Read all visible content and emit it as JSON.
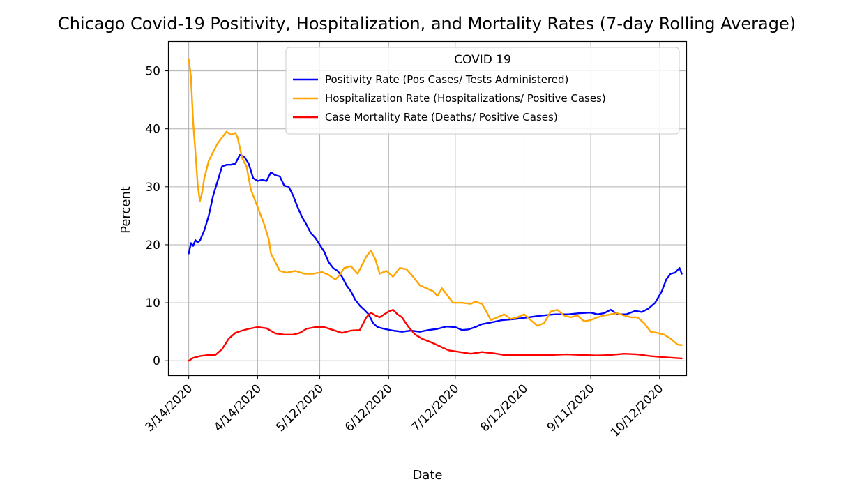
{
  "chart_data": {
    "type": "line",
    "title": "Chicago Covid-19 Positivity, Hospitalization, and Mortality Rates (7-day Rolling Average)",
    "xlabel": "Date",
    "ylabel": "Percent",
    "ylim": [
      -2.5,
      55
    ],
    "xlim": [
      "2020-03-05",
      "2020-10-24"
    ],
    "y_ticks": [
      0,
      10,
      20,
      30,
      40,
      50
    ],
    "x_ticks": [
      {
        "date": "2020-03-14",
        "label": "3/14/2020"
      },
      {
        "date": "2020-04-14",
        "label": "4/14/2020"
      },
      {
        "date": "2020-05-12",
        "label": "5/12/2020"
      },
      {
        "date": "2020-06-12",
        "label": "6/12/2020"
      },
      {
        "date": "2020-07-12",
        "label": "7/12/2020"
      },
      {
        "date": "2020-08-12",
        "label": "8/12/2020"
      },
      {
        "date": "2020-09-11",
        "label": "9/11/2020"
      },
      {
        "date": "2020-10-12",
        "label": "10/12/2020"
      }
    ],
    "grid": true,
    "legend": {
      "title": "COVID 19",
      "placement": "top-right"
    },
    "series": [
      {
        "name": "Positivity Rate (Pos Cases/ Tests Administered)",
        "color": "#0000ff",
        "points": [
          [
            "2020-03-14",
            18.5
          ],
          [
            "2020-03-15",
            20.3
          ],
          [
            "2020-03-16",
            19.8
          ],
          [
            "2020-03-17",
            20.8
          ],
          [
            "2020-03-18",
            20.4
          ],
          [
            "2020-03-19",
            20.7
          ],
          [
            "2020-03-21",
            22.5
          ],
          [
            "2020-03-23",
            25.0
          ],
          [
            "2020-03-25",
            28.5
          ],
          [
            "2020-03-27",
            31.0
          ],
          [
            "2020-03-29",
            33.5
          ],
          [
            "2020-03-31",
            33.8
          ],
          [
            "2020-04-02",
            33.8
          ],
          [
            "2020-04-04",
            34.0
          ],
          [
            "2020-04-06",
            35.5
          ],
          [
            "2020-04-08",
            35.2
          ],
          [
            "2020-04-10",
            34.0
          ],
          [
            "2020-04-12",
            31.5
          ],
          [
            "2020-04-14",
            31.0
          ],
          [
            "2020-04-16",
            31.2
          ],
          [
            "2020-04-18",
            31.0
          ],
          [
            "2020-04-20",
            32.5
          ],
          [
            "2020-04-22",
            32.0
          ],
          [
            "2020-04-24",
            31.8
          ],
          [
            "2020-04-26",
            30.2
          ],
          [
            "2020-04-28",
            30.0
          ],
          [
            "2020-04-30",
            28.5
          ],
          [
            "2020-05-02",
            26.5
          ],
          [
            "2020-05-04",
            24.8
          ],
          [
            "2020-05-06",
            23.5
          ],
          [
            "2020-05-08",
            22.0
          ],
          [
            "2020-05-10",
            21.2
          ],
          [
            "2020-05-12",
            20.0
          ],
          [
            "2020-05-14",
            18.8
          ],
          [
            "2020-05-16",
            17.0
          ],
          [
            "2020-05-18",
            16.0
          ],
          [
            "2020-05-20",
            15.5
          ],
          [
            "2020-05-22",
            14.5
          ],
          [
            "2020-05-24",
            13.0
          ],
          [
            "2020-05-26",
            12.0
          ],
          [
            "2020-05-28",
            10.5
          ],
          [
            "2020-05-30",
            9.5
          ],
          [
            "2020-06-01",
            8.8
          ],
          [
            "2020-06-03",
            8.0
          ],
          [
            "2020-06-05",
            6.5
          ],
          [
            "2020-06-07",
            5.8
          ],
          [
            "2020-06-10",
            5.5
          ],
          [
            "2020-06-14",
            5.2
          ],
          [
            "2020-06-18",
            5.0
          ],
          [
            "2020-06-22",
            5.2
          ],
          [
            "2020-06-26",
            5.0
          ],
          [
            "2020-06-30",
            5.3
          ],
          [
            "2020-07-04",
            5.5
          ],
          [
            "2020-07-08",
            5.9
          ],
          [
            "2020-07-12",
            5.8
          ],
          [
            "2020-07-15",
            5.3
          ],
          [
            "2020-07-18",
            5.4
          ],
          [
            "2020-07-21",
            5.8
          ],
          [
            "2020-07-24",
            6.3
          ],
          [
            "2020-07-28",
            6.6
          ],
          [
            "2020-08-02",
            7.0
          ],
          [
            "2020-08-08",
            7.2
          ],
          [
            "2020-08-14",
            7.5
          ],
          [
            "2020-08-20",
            7.8
          ],
          [
            "2020-08-26",
            8.0
          ],
          [
            "2020-09-01",
            8.0
          ],
          [
            "2020-09-06",
            8.2
          ],
          [
            "2020-09-11",
            8.3
          ],
          [
            "2020-09-14",
            8.0
          ],
          [
            "2020-09-17",
            8.2
          ],
          [
            "2020-09-20",
            8.8
          ],
          [
            "2020-09-23",
            8.0
          ],
          [
            "2020-09-27",
            8.0
          ],
          [
            "2020-10-01",
            8.6
          ],
          [
            "2020-10-04",
            8.4
          ],
          [
            "2020-10-07",
            9.0
          ],
          [
            "2020-10-10",
            10.0
          ],
          [
            "2020-10-13",
            12.0
          ],
          [
            "2020-10-15",
            14.0
          ],
          [
            "2020-10-17",
            15.0
          ],
          [
            "2020-10-19",
            15.2
          ],
          [
            "2020-10-21",
            16.0
          ],
          [
            "2020-10-22",
            15.0
          ]
        ]
      },
      {
        "name": "Hospitalization Rate (Hospitalizations/ Positive Cases)",
        "color": "#ffa500",
        "points": [
          [
            "2020-03-14",
            52.0
          ],
          [
            "2020-03-15",
            49.0
          ],
          [
            "2020-03-16",
            41.0
          ],
          [
            "2020-03-17",
            36.0
          ],
          [
            "2020-03-18",
            30.5
          ],
          [
            "2020-03-19",
            27.5
          ],
          [
            "2020-03-20",
            29.0
          ],
          [
            "2020-03-21",
            31.5
          ],
          [
            "2020-03-23",
            34.5
          ],
          [
            "2020-03-25",
            36.0
          ],
          [
            "2020-03-27",
            37.5
          ],
          [
            "2020-03-29",
            38.5
          ],
          [
            "2020-03-31",
            39.5
          ],
          [
            "2020-04-02",
            39.0
          ],
          [
            "2020-04-04",
            39.3
          ],
          [
            "2020-04-05",
            38.5
          ],
          [
            "2020-04-07",
            35.0
          ],
          [
            "2020-04-09",
            33.5
          ],
          [
            "2020-04-11",
            29.5
          ],
          [
            "2020-04-13",
            27.5
          ],
          [
            "2020-04-15",
            25.5
          ],
          [
            "2020-04-17",
            23.5
          ],
          [
            "2020-04-19",
            21.0
          ],
          [
            "2020-04-20",
            18.5
          ],
          [
            "2020-04-22",
            17.0
          ],
          [
            "2020-04-24",
            15.5
          ],
          [
            "2020-04-27",
            15.2
          ],
          [
            "2020-05-01",
            15.5
          ],
          [
            "2020-05-05",
            15.0
          ],
          [
            "2020-05-09",
            15.0
          ],
          [
            "2020-05-13",
            15.3
          ],
          [
            "2020-05-16",
            14.8
          ],
          [
            "2020-05-19",
            14.0
          ],
          [
            "2020-05-21",
            14.8
          ],
          [
            "2020-05-23",
            16.0
          ],
          [
            "2020-05-26",
            16.3
          ],
          [
            "2020-05-29",
            15.0
          ],
          [
            "2020-05-31",
            16.5
          ],
          [
            "2020-06-02",
            18.0
          ],
          [
            "2020-06-04",
            19.0
          ],
          [
            "2020-06-06",
            17.5
          ],
          [
            "2020-06-08",
            15.0
          ],
          [
            "2020-06-11",
            15.5
          ],
          [
            "2020-06-14",
            14.5
          ],
          [
            "2020-06-17",
            16.0
          ],
          [
            "2020-06-20",
            15.8
          ],
          [
            "2020-06-23",
            14.5
          ],
          [
            "2020-06-26",
            13.0
          ],
          [
            "2020-06-29",
            12.5
          ],
          [
            "2020-07-02",
            12.0
          ],
          [
            "2020-07-04",
            11.2
          ],
          [
            "2020-07-06",
            12.5
          ],
          [
            "2020-07-08",
            11.5
          ],
          [
            "2020-07-11",
            10.0
          ],
          [
            "2020-07-15",
            10.0
          ],
          [
            "2020-07-19",
            9.8
          ],
          [
            "2020-07-21",
            10.2
          ],
          [
            "2020-07-24",
            9.8
          ],
          [
            "2020-07-26",
            8.5
          ],
          [
            "2020-07-28",
            7.0
          ],
          [
            "2020-07-31",
            7.5
          ],
          [
            "2020-08-03",
            8.0
          ],
          [
            "2020-08-06",
            7.2
          ],
          [
            "2020-08-09",
            7.5
          ],
          [
            "2020-08-12",
            8.0
          ],
          [
            "2020-08-15",
            7.0
          ],
          [
            "2020-08-18",
            6.0
          ],
          [
            "2020-08-21",
            6.5
          ],
          [
            "2020-08-24",
            8.5
          ],
          [
            "2020-08-27",
            8.8
          ],
          [
            "2020-08-30",
            7.8
          ],
          [
            "2020-09-02",
            7.5
          ],
          [
            "2020-09-05",
            7.8
          ],
          [
            "2020-09-08",
            6.8
          ],
          [
            "2020-09-11",
            7.0
          ],
          [
            "2020-09-14",
            7.5
          ],
          [
            "2020-09-17",
            7.8
          ],
          [
            "2020-09-20",
            8.0
          ],
          [
            "2020-09-23",
            8.2
          ],
          [
            "2020-09-26",
            7.8
          ],
          [
            "2020-09-29",
            7.5
          ],
          [
            "2020-10-02",
            7.5
          ],
          [
            "2020-10-05",
            6.5
          ],
          [
            "2020-10-08",
            5.0
          ],
          [
            "2020-10-11",
            4.8
          ],
          [
            "2020-10-14",
            4.5
          ],
          [
            "2020-10-17",
            3.8
          ],
          [
            "2020-10-20",
            2.8
          ],
          [
            "2020-10-22",
            2.7
          ]
        ]
      },
      {
        "name": "Case Mortality Rate (Deaths/ Positive Cases)",
        "color": "#ff0000",
        "points": [
          [
            "2020-03-14",
            0.0
          ],
          [
            "2020-03-16",
            0.5
          ],
          [
            "2020-03-19",
            0.8
          ],
          [
            "2020-03-23",
            1.0
          ],
          [
            "2020-03-26",
            1.0
          ],
          [
            "2020-03-29",
            2.0
          ],
          [
            "2020-04-01",
            3.8
          ],
          [
            "2020-04-04",
            4.8
          ],
          [
            "2020-04-07",
            5.2
          ],
          [
            "2020-04-10",
            5.5
          ],
          [
            "2020-04-14",
            5.8
          ],
          [
            "2020-04-18",
            5.6
          ],
          [
            "2020-04-22",
            4.7
          ],
          [
            "2020-04-26",
            4.5
          ],
          [
            "2020-04-30",
            4.5
          ],
          [
            "2020-05-03",
            4.8
          ],
          [
            "2020-05-06",
            5.5
          ],
          [
            "2020-05-10",
            5.8
          ],
          [
            "2020-05-14",
            5.8
          ],
          [
            "2020-05-18",
            5.3
          ],
          [
            "2020-05-22",
            4.8
          ],
          [
            "2020-05-26",
            5.2
          ],
          [
            "2020-05-30",
            5.3
          ],
          [
            "2020-06-02",
            7.5
          ],
          [
            "2020-06-04",
            8.3
          ],
          [
            "2020-06-06",
            7.8
          ],
          [
            "2020-06-08",
            7.5
          ],
          [
            "2020-06-10",
            8.0
          ],
          [
            "2020-06-12",
            8.5
          ],
          [
            "2020-06-14",
            8.8
          ],
          [
            "2020-06-16",
            8.0
          ],
          [
            "2020-06-18",
            7.5
          ],
          [
            "2020-06-21",
            5.8
          ],
          [
            "2020-06-24",
            4.5
          ],
          [
            "2020-06-27",
            3.8
          ],
          [
            "2020-07-01",
            3.2
          ],
          [
            "2020-07-05",
            2.5
          ],
          [
            "2020-07-09",
            1.8
          ],
          [
            "2020-07-14",
            1.5
          ],
          [
            "2020-07-19",
            1.2
          ],
          [
            "2020-07-24",
            1.5
          ],
          [
            "2020-07-29",
            1.3
          ],
          [
            "2020-08-03",
            1.0
          ],
          [
            "2020-08-10",
            1.0
          ],
          [
            "2020-08-17",
            1.0
          ],
          [
            "2020-08-24",
            1.0
          ],
          [
            "2020-08-31",
            1.1
          ],
          [
            "2020-09-07",
            1.0
          ],
          [
            "2020-09-14",
            0.9
          ],
          [
            "2020-09-20",
            1.0
          ],
          [
            "2020-09-26",
            1.2
          ],
          [
            "2020-10-02",
            1.1
          ],
          [
            "2020-10-08",
            0.8
          ],
          [
            "2020-10-14",
            0.6
          ],
          [
            "2020-10-22",
            0.4
          ]
        ]
      }
    ]
  }
}
